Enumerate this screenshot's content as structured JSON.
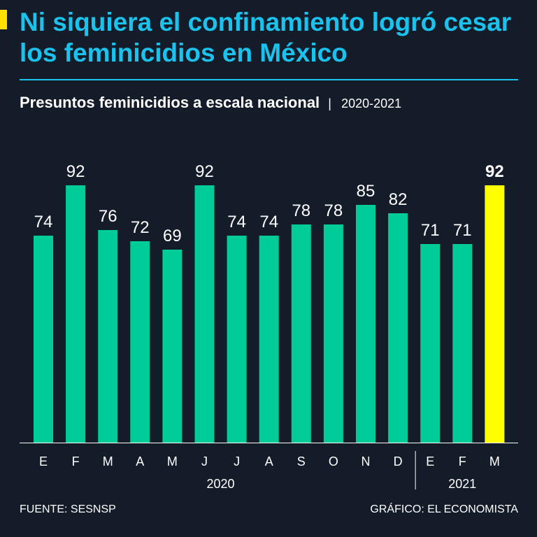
{
  "colors": {
    "background": "#141c29",
    "title": "#19c3ee",
    "bar": "#00cc99",
    "highlight": "#ffff00",
    "text": "#ffffff"
  },
  "header": {
    "title": "Ni siquiera el confinamiento logró cesar los feminicidios en México",
    "subtitle_main": "Presuntos feminicidios a escala nacional",
    "subtitle_separator": "|",
    "subtitle_range": "2020-2021"
  },
  "chart_data": {
    "type": "bar",
    "categories": [
      "E",
      "F",
      "M",
      "A",
      "M",
      "J",
      "J",
      "A",
      "S",
      "O",
      "N",
      "D",
      "E",
      "F",
      "M"
    ],
    "values": [
      74,
      92,
      76,
      72,
      69,
      92,
      74,
      74,
      78,
      78,
      85,
      82,
      71,
      71,
      92
    ],
    "years": [
      {
        "label": "2020",
        "start": 0,
        "end": 11
      },
      {
        "label": "2021",
        "start": 12,
        "end": 14
      }
    ],
    "highlight_index": 14,
    "ylim": [
      0,
      92
    ],
    "title": "Presuntos feminicidios a escala nacional",
    "xlabel": "",
    "ylabel": "",
    "grid": false
  },
  "footer": {
    "source": "FUENTE: SESNSP",
    "credit": "GRÁFICO: EL ECONOMISTA"
  }
}
